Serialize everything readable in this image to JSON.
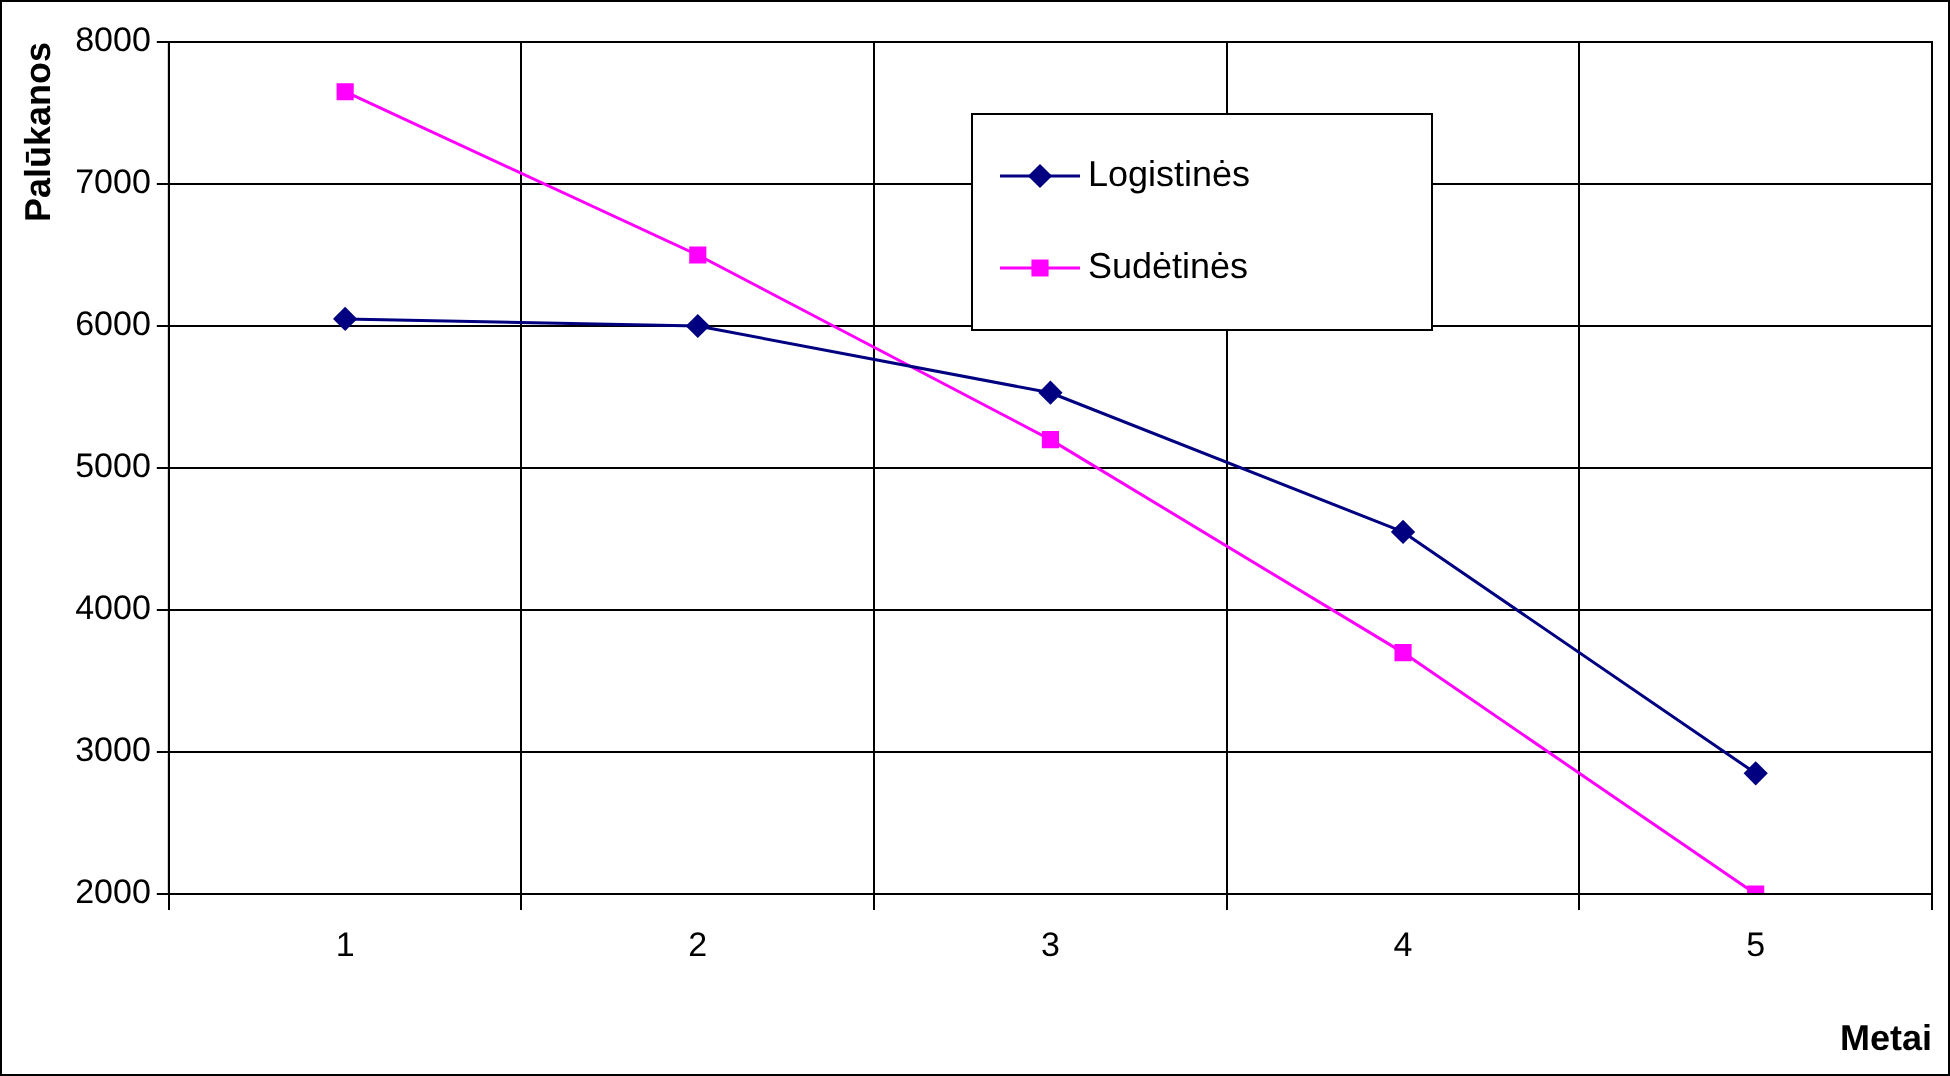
{
  "chart_data": {
    "type": "line",
    "xlabel": "Metai",
    "ylabel": "Palūkanos",
    "categories": [
      "1",
      "2",
      "3",
      "4",
      "5"
    ],
    "series": [
      {
        "name": "Logistinės",
        "color": "#000080",
        "marker": "diamond",
        "values": [
          6050,
          6000,
          5530,
          4550,
          2850
        ]
      },
      {
        "name": "Sudėtinės",
        "color": "#ff00ff",
        "marker": "square",
        "values": [
          7650,
          6500,
          5200,
          3700,
          2000
        ]
      }
    ],
    "ylim": [
      2000,
      8000
    ],
    "yticks": [
      2000,
      3000,
      4000,
      5000,
      6000,
      7000,
      8000
    ],
    "grid": true,
    "legend": "top right"
  }
}
